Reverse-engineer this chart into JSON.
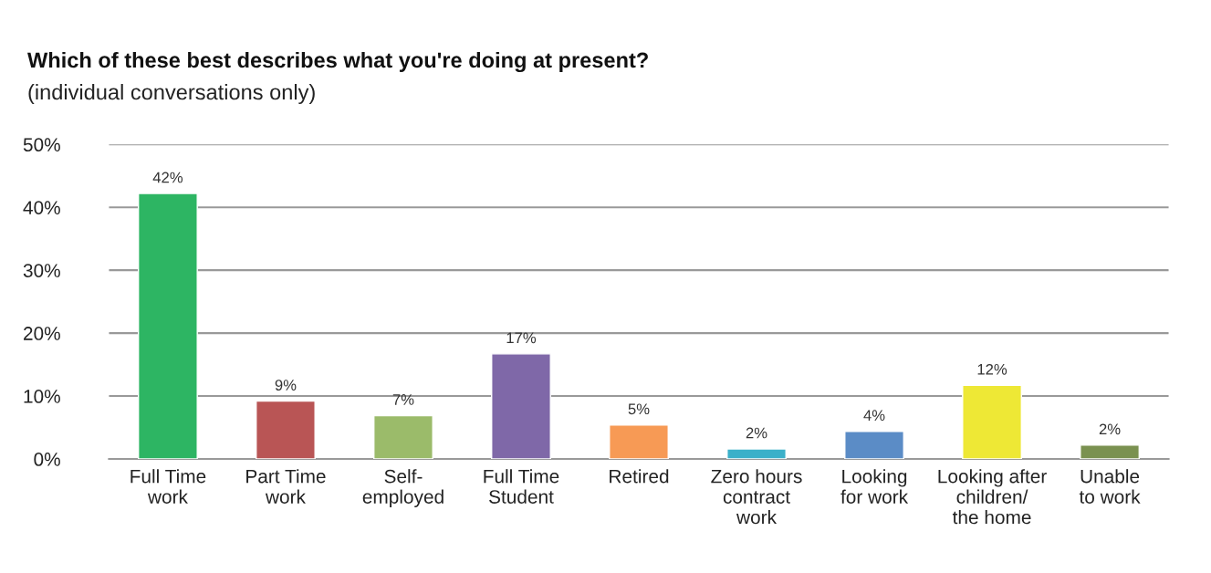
{
  "chart_data": {
    "type": "bar",
    "title": "Which of these best describes what you're doing at present?",
    "subtitle": "(individual conversations only)",
    "categories": [
      "Full Time\nwork",
      "Part Time\nwork",
      "Self-\nemployed",
      "Full Time\nStudent",
      "Retired",
      "Zero hours\ncontract\nwork",
      "Looking\nfor work",
      "Looking after\nchildren/\nthe home",
      "Unable\nto work"
    ],
    "values": [
      42.2,
      9.2,
      6.9,
      16.7,
      5.4,
      1.6,
      4.4,
      11.7,
      2.2
    ],
    "value_labels": [
      "42%",
      "9%",
      "7%",
      "17%",
      "5%",
      "2%",
      "4%",
      "12%",
      "2%"
    ],
    "colors": [
      "#2db563",
      "#b95555",
      "#9bbb6a",
      "#7f68a8",
      "#f79a55",
      "#3bb0c9",
      "#5b8cc6",
      "#eee835",
      "#7a9150"
    ],
    "ylim": [
      0,
      50
    ],
    "yticks": [
      {
        "value": 0,
        "label": "0%"
      },
      {
        "value": 10,
        "label": "10%"
      },
      {
        "value": 20,
        "label": "20%"
      },
      {
        "value": 30,
        "label": "30%"
      },
      {
        "value": 40,
        "label": "40%"
      },
      {
        "value": 50,
        "label": "50%"
      }
    ],
    "grid": "y",
    "legend": false
  }
}
